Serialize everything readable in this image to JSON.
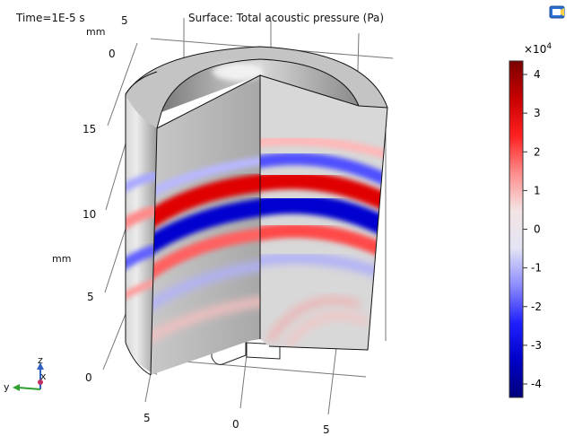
{
  "plot": {
    "time_label": "Time=1E-5 s",
    "title": "Surface: Total acoustic pressure (Pa)",
    "unit_mm_top": "mm",
    "unit_mm_left": "mm",
    "axis_ticks": {
      "back_top": [
        "5",
        "0"
      ],
      "vertical": [
        "15",
        "10",
        "5",
        "0"
      ],
      "bottom_front": [
        "5",
        "0",
        "5"
      ]
    }
  },
  "axes_triad": {
    "z": "z",
    "y": "y",
    "x": "x"
  },
  "toolbar": {
    "view_icon": "camera-view-icon"
  },
  "colorbar": {
    "multiplier": "×10",
    "exponent": "4",
    "ticks": [
      "4",
      "3",
      "2",
      "1",
      "0",
      "-1",
      "-2",
      "-3",
      "-4"
    ],
    "gradient": [
      "#7a0000",
      "#c80000",
      "#ff2020",
      "#ff8c8c",
      "#f4e4e4",
      "#e4e4f4",
      "#8c8cff",
      "#2020ff",
      "#0000c8",
      "#00007a"
    ]
  },
  "chart_data": {
    "type": "heatmap",
    "title": "Surface: Total acoustic pressure (Pa)",
    "time": "1E-5 s",
    "color_range": [
      -42000,
      42000
    ],
    "colorbar_ticks": [
      4,
      3,
      2,
      1,
      0,
      -1,
      -2,
      -3,
      -4
    ],
    "colorbar_scale": "×10^4",
    "z_ticks_mm": [
      0,
      5,
      10,
      15
    ]
  }
}
